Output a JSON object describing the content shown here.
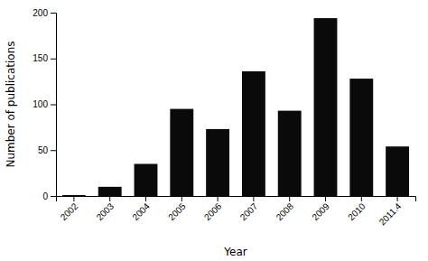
{
  "chart_data": {
    "type": "bar",
    "categories": [
      "2002",
      "2003",
      "2004",
      "2005",
      "2006",
      "2007",
      "2008",
      "2009",
      "2010",
      "2011.4"
    ],
    "values": [
      1,
      10,
      35,
      95,
      73,
      136,
      93,
      194,
      128,
      54
    ],
    "color": "#0a0a0a",
    "xlabel": "Year",
    "ylabel": "Number of publications",
    "ylim": [
      0,
      200
    ],
    "yticks": [
      0,
      50,
      100,
      150,
      200
    ],
    "grid": false
  }
}
